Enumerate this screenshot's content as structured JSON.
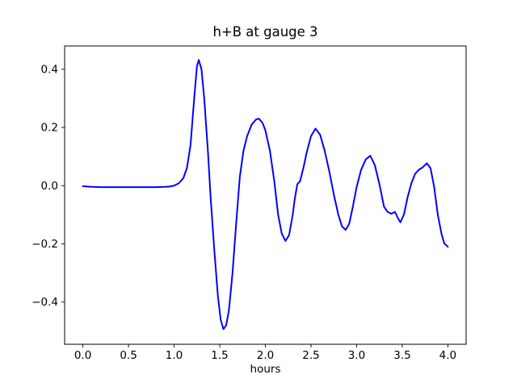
{
  "figure": {
    "background": "#ffffff"
  },
  "chart_data": {
    "type": "line",
    "title": "h+B at gauge 3",
    "xlabel": "hours",
    "ylabel": "",
    "grid": false,
    "legend": "none",
    "axis_color": "#000000",
    "text_color": "#000000",
    "xlim": [
      -0.2,
      4.2
    ],
    "ylim": [
      -0.545,
      0.48
    ],
    "xticks": [
      0.0,
      0.5,
      1.0,
      1.5,
      2.0,
      2.5,
      3.0,
      3.5,
      4.0
    ],
    "xtick_labels": [
      "0.0",
      "0.5",
      "1.0",
      "1.5",
      "2.0",
      "2.5",
      "3.0",
      "3.5",
      "4.0"
    ],
    "yticks": [
      -0.4,
      -0.2,
      0.0,
      0.2,
      0.4
    ],
    "ytick_labels": [
      "−0.4",
      "−0.2",
      "0.0",
      "0.2",
      "0.4"
    ],
    "series": [
      {
        "name": "h+B",
        "color": "#0000ff",
        "x": [
          0.0,
          0.1,
          0.2,
          0.3,
          0.4,
          0.5,
          0.6,
          0.7,
          0.8,
          0.9,
          0.95,
          1.0,
          1.05,
          1.1,
          1.14,
          1.18,
          1.22,
          1.25,
          1.27,
          1.3,
          1.33,
          1.37,
          1.4,
          1.44,
          1.48,
          1.51,
          1.54,
          1.57,
          1.6,
          1.64,
          1.68,
          1.72,
          1.76,
          1.8,
          1.85,
          1.9,
          1.93,
          1.97,
          2.0,
          2.05,
          2.1,
          2.14,
          2.18,
          2.22,
          2.26,
          2.3,
          2.32,
          2.35,
          2.38,
          2.42,
          2.45,
          2.5,
          2.55,
          2.6,
          2.65,
          2.7,
          2.75,
          2.8,
          2.84,
          2.88,
          2.92,
          2.96,
          3.0,
          3.05,
          3.1,
          3.15,
          3.2,
          3.25,
          3.3,
          3.34,
          3.38,
          3.42,
          3.45,
          3.48,
          3.52,
          3.56,
          3.6,
          3.64,
          3.68,
          3.72,
          3.77,
          3.81,
          3.85,
          3.89,
          3.93,
          3.96,
          4.0
        ],
        "y": [
          -0.002,
          -0.004,
          -0.005,
          -0.005,
          -0.005,
          -0.005,
          -0.005,
          -0.005,
          -0.005,
          -0.004,
          -0.003,
          0.0,
          0.008,
          0.025,
          0.06,
          0.14,
          0.3,
          0.41,
          0.432,
          0.4,
          0.3,
          0.12,
          -0.04,
          -0.22,
          -0.38,
          -0.46,
          -0.493,
          -0.48,
          -0.43,
          -0.3,
          -0.13,
          0.03,
          0.12,
          0.17,
          0.21,
          0.228,
          0.23,
          0.215,
          0.19,
          0.12,
          0.01,
          -0.1,
          -0.165,
          -0.19,
          -0.17,
          -0.1,
          -0.05,
          0.005,
          0.015,
          0.065,
          0.11,
          0.17,
          0.196,
          0.175,
          0.12,
          0.05,
          -0.03,
          -0.1,
          -0.14,
          -0.152,
          -0.13,
          -0.07,
          -0.005,
          0.055,
          0.09,
          0.103,
          0.07,
          0.005,
          -0.072,
          -0.09,
          -0.097,
          -0.09,
          -0.11,
          -0.126,
          -0.098,
          -0.038,
          0.008,
          0.04,
          0.054,
          0.062,
          0.077,
          0.06,
          -0.005,
          -0.1,
          -0.165,
          -0.198,
          -0.21
        ]
      }
    ]
  }
}
